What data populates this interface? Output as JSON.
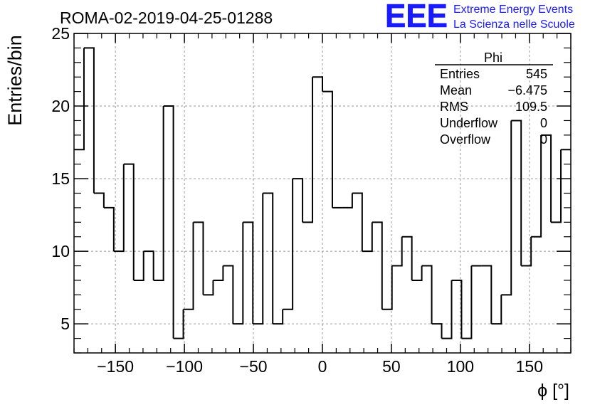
{
  "header": {
    "run_title": "ROMA-02-2019-04-25-01288",
    "logo_text": "EEE",
    "logo_line1": "Extreme Energy Events",
    "logo_line2": "La Scienza nelle Scuole",
    "brand_color": "#1a1aff"
  },
  "stats_box": {
    "title": "Phi",
    "rows": [
      {
        "label": "Entries",
        "value": "545"
      },
      {
        "label": "Mean",
        "value": "−6.475"
      },
      {
        "label": "RMS",
        "value": "109.5"
      },
      {
        "label": "Underflow",
        "value": "0"
      },
      {
        "label": "Overflow",
        "value": "0"
      }
    ]
  },
  "chart_data": {
    "type": "histogram",
    "ylabel": "Entries/bin",
    "xlabel": "ϕ [°]",
    "xlim": [
      -180,
      180
    ],
    "ylim": [
      3,
      25
    ],
    "grid": true,
    "x_ticks": [
      -150,
      -100,
      -50,
      0,
      50,
      100,
      150
    ],
    "x_tick_labels": [
      "−150",
      "−100",
      "−50",
      "0",
      "50",
      "100",
      "150"
    ],
    "y_ticks": [
      5,
      10,
      15,
      20,
      25
    ],
    "y_tick_labels": [
      "5",
      "10",
      "15",
      "20",
      "25"
    ],
    "bin_width": 7.2,
    "bin_edges_start": -180,
    "values": [
      17,
      24,
      14,
      13,
      10,
      16,
      8,
      10,
      8,
      20,
      4,
      6,
      12,
      7,
      8,
      9,
      5,
      12,
      5,
      14,
      5,
      6,
      15,
      12,
      22,
      21,
      13,
      13,
      14,
      10,
      12,
      6,
      9,
      11,
      8,
      9,
      5,
      4,
      8,
      4,
      9,
      9,
      5,
      7,
      19,
      9,
      11,
      18,
      12,
      17
    ]
  }
}
